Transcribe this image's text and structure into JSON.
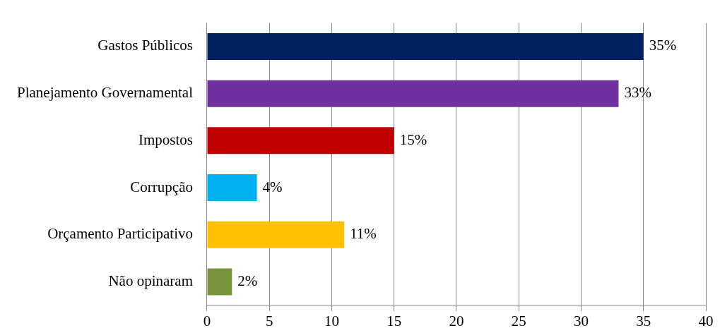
{
  "chart_data": {
    "type": "bar",
    "orientation": "horizontal",
    "categories": [
      "Gastos Públicos",
      "Planejamento Governamental",
      "Impostos",
      "Corrupção",
      "Orçamento Participativo",
      "Não opinaram"
    ],
    "values": [
      35,
      33,
      15,
      4,
      11,
      2
    ],
    "colors": [
      "#002060",
      "#7030a0",
      "#c00000",
      "#00b0f0",
      "#ffc000",
      "#77933c"
    ],
    "value_labels": [
      "35%",
      "33%",
      "15%",
      "4%",
      "11%",
      "2%"
    ],
    "xlim": [
      0,
      40
    ],
    "xticks": [
      0,
      5,
      10,
      15,
      20,
      25,
      30,
      35,
      40
    ],
    "grid": "x",
    "legend": false
  }
}
